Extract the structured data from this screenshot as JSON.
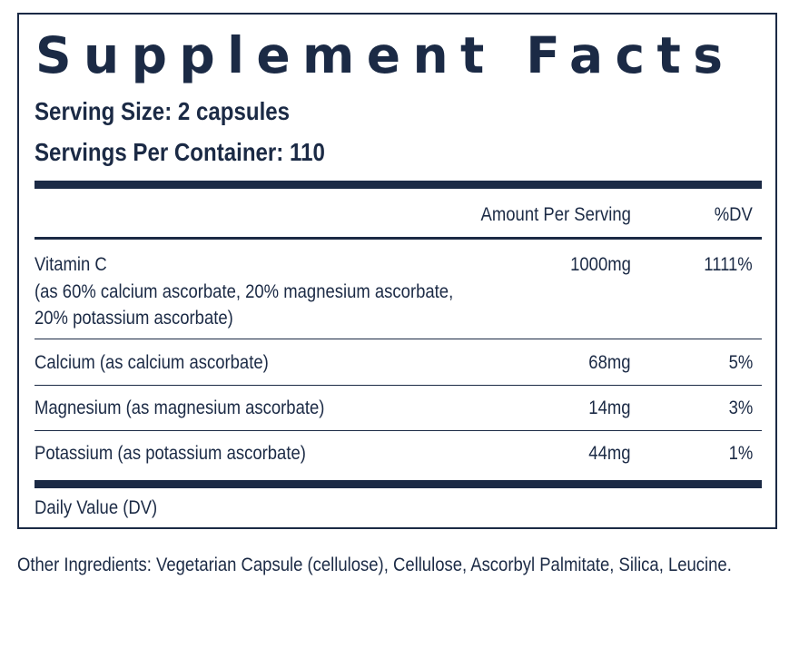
{
  "title": "Supplement Facts",
  "serving_size": "Serving Size: 2 capsules",
  "servings_per_container": "Servings Per Container: 110",
  "header": {
    "amount": "Amount Per Serving",
    "dv": "%DV"
  },
  "rows": [
    {
      "name": "Vitamin C",
      "detail_1": "(as 60% calcium ascorbate, 20% magnesium ascorbate,",
      "detail_2": "20% potassium ascorbate)",
      "amount": "1000mg",
      "dv": "1111%"
    },
    {
      "name": "Calcium (as calcium ascorbate)",
      "amount": "68mg",
      "dv": "5%"
    },
    {
      "name": "Magnesium (as magnesium ascorbate)",
      "amount": "14mg",
      "dv": "3%"
    },
    {
      "name": "Potassium (as potassium ascorbate)",
      "amount": "44mg",
      "dv": "1%"
    }
  ],
  "footnote": "Daily Value (DV)",
  "other_ingredients": "Other Ingredients: Vegetarian Capsule (cellulose), Cellulose, Ascorbyl Palmitate, Silica, Leucine.",
  "colors": {
    "ink": "#1b2a45",
    "background": "#ffffff"
  }
}
